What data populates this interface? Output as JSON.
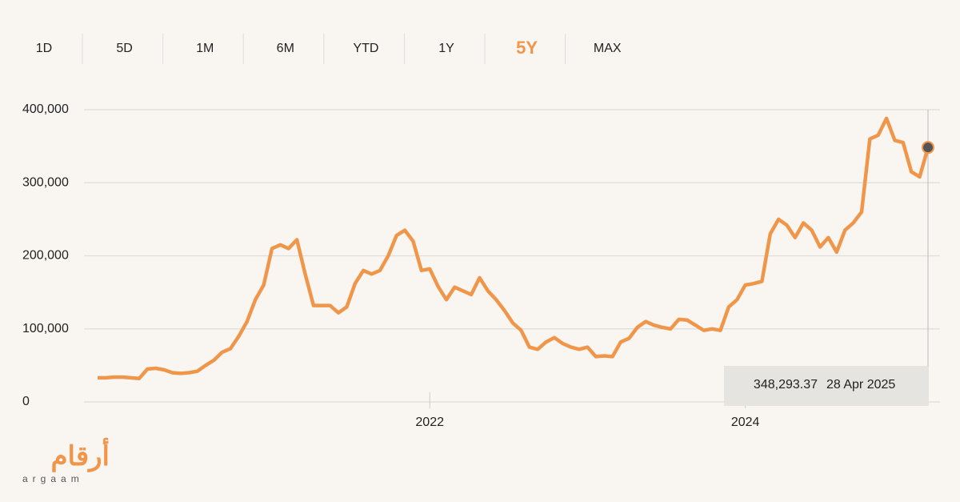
{
  "tabs": [
    "1D",
    "5D",
    "1M",
    "6M",
    "YTD",
    "1Y",
    "5Y",
    "MAX"
  ],
  "active_tab": "5Y",
  "logo": {
    "arabic": "أرقام",
    "latin": "argaam"
  },
  "chart_data": {
    "type": "line",
    "categories": [
      null,
      null,
      null,
      null,
      null,
      null,
      null,
      null,
      null,
      null,
      null,
      null,
      null,
      null,
      null,
      null,
      null,
      null,
      null,
      null,
      null,
      null,
      null,
      null,
      null,
      null,
      null,
      null,
      null,
      null,
      null,
      null,
      null,
      null,
      null,
      null,
      null,
      null,
      null,
      null,
      "2022",
      null,
      null,
      null,
      null,
      null,
      null,
      null,
      null,
      null,
      null,
      null,
      null,
      null,
      null,
      null,
      null,
      null,
      null,
      null,
      null,
      null,
      null,
      null,
      null,
      null,
      null,
      null,
      null,
      null,
      null,
      null,
      null,
      null,
      null,
      null,
      null,
      null,
      "2024",
      null,
      null,
      null,
      null,
      null,
      null,
      null,
      null,
      null,
      null,
      null,
      null,
      null,
      null,
      null,
      null,
      null,
      null,
      null,
      null,
      null,
      null
    ],
    "series": [
      {
        "name": "5Y",
        "color": "#f0964a",
        "values": [
          33000,
          33000,
          34000,
          34000,
          33000,
          32000,
          45000,
          46000,
          44000,
          40000,
          39000,
          40000,
          42000,
          50000,
          57000,
          68000,
          73000,
          90000,
          110000,
          140000,
          160000,
          210000,
          215000,
          210000,
          222000,
          175000,
          132000,
          132000,
          132000,
          122000,
          130000,
          162000,
          180000,
          175000,
          180000,
          200000,
          228000,
          235000,
          220000,
          180000,
          182000,
          158000,
          140000,
          157000,
          152000,
          147000,
          170000,
          152000,
          140000,
          125000,
          108000,
          98000,
          75000,
          72000,
          82000,
          88000,
          80000,
          75000,
          72000,
          75000,
          62000,
          63000,
          62000,
          82000,
          87000,
          102000,
          110000,
          105000,
          102000,
          100000,
          113000,
          112000,
          105000,
          98000,
          100000,
          98000,
          130000,
          140000,
          160000,
          162000,
          165000,
          230000,
          250000,
          242000,
          225000,
          245000,
          235000,
          212000,
          225000,
          205000,
          235000,
          245000,
          260000,
          360000,
          365000,
          388000,
          358000,
          355000,
          315000,
          308000,
          348293.37
        ]
      }
    ],
    "ylim": [
      0,
      400000
    ],
    "yticks": [
      0,
      {
        "value": 100000,
        "label": "100,000"
      },
      {
        "value": 200000,
        "label": "200,000"
      },
      {
        "value": 300000,
        "label": "300,000"
      },
      {
        "value": 400000,
        "label": "400,000"
      }
    ],
    "grid": true,
    "tooltip": {
      "value": 348293.37,
      "label": "348,293.37",
      "date": "28 Apr 2025"
    }
  }
}
